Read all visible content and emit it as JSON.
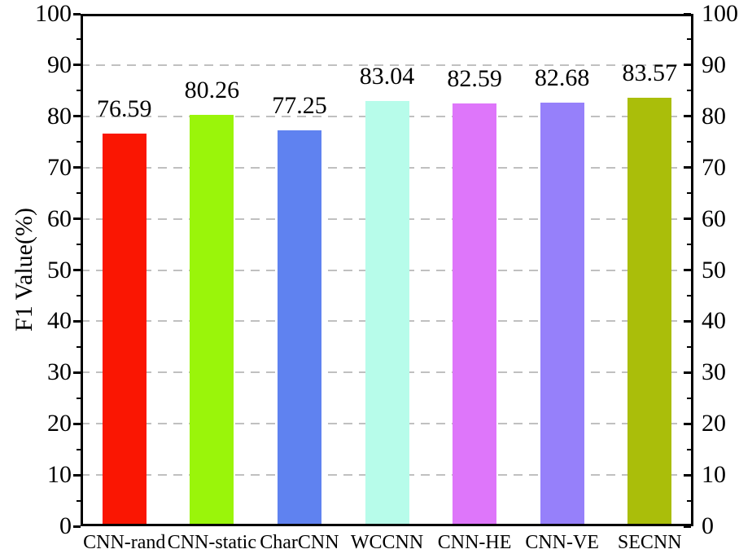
{
  "chart_data": {
    "type": "bar",
    "title": "",
    "xlabel": "",
    "ylabel": "F1 Value(%)",
    "categories": [
      "CNN-rand",
      "CNN-static",
      "CharCNN",
      "WCCNN",
      "CNN-HE",
      "CNN-VE",
      "SECNN"
    ],
    "values": [
      76.59,
      80.26,
      77.25,
      83.04,
      82.59,
      82.68,
      83.57
    ],
    "value_labels": [
      "76.59",
      "80.26",
      "77.25",
      "83.04",
      "82.59",
      "82.68",
      "83.57"
    ],
    "bar_colors": [
      "#fa1602",
      "#9af50a",
      "#5f82f0",
      "#b7fcea",
      "#de76fa",
      "#9680fa",
      "#aabe0a"
    ],
    "ylim": [
      0,
      100
    ],
    "major_tick_step": 10,
    "minor_tick_step": 5,
    "y_tick_labels": [
      "0",
      "10",
      "20",
      "30",
      "40",
      "50",
      "60",
      "70",
      "80",
      "90",
      "100"
    ],
    "grid": {
      "horizontal_dashed": true,
      "color": "#c0c0c0",
      "levels": [
        10,
        20,
        30,
        40,
        50,
        60,
        70,
        80,
        90
      ]
    },
    "legend": null,
    "right_axis_mirrors_left": true,
    "axis_color": "#000000",
    "text_color": "#000000",
    "background": "#ffffff"
  }
}
